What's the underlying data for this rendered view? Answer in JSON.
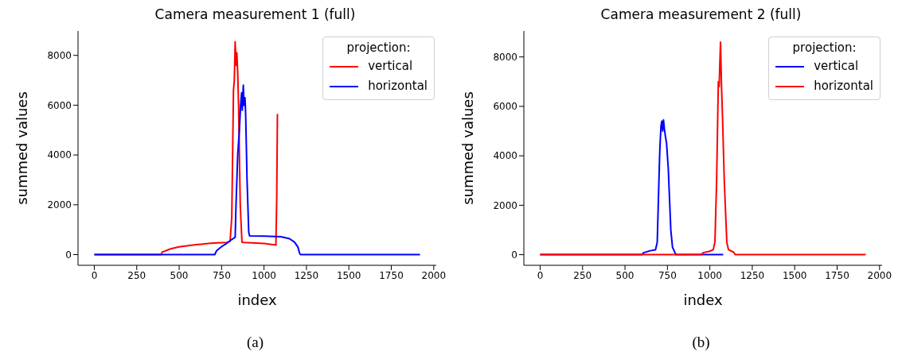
{
  "chart_data": [
    {
      "type": "line",
      "title": "Camera measurement 1 (full)",
      "xlabel": "index",
      "ylabel": "summed values",
      "legend_title": "projection:",
      "legend": "top right",
      "grid": false,
      "annotations": [
        "(a)"
      ],
      "xlim": [
        -96,
        2015
      ],
      "ylim": [
        -430,
        8980
      ],
      "xticks": [
        0,
        250,
        500,
        750,
        1000,
        1250,
        1500,
        1750,
        2000
      ],
      "yticks": [
        0,
        2000,
        4000,
        6000,
        8000
      ],
      "series": [
        {
          "name": "vertical",
          "color": "#ff0000",
          "x": [
            0,
            395,
            400,
            450,
            500,
            600,
            700,
            780,
            800,
            810,
            815,
            820,
            825,
            830,
            835,
            840,
            845,
            850,
            860,
            870,
            880,
            1000,
            1070,
            1075,
            1079
          ],
          "values": [
            0,
            0,
            100,
            230,
            310,
            400,
            460,
            490,
            530,
            1500,
            4000,
            6600,
            7000,
            8550,
            7600,
            8100,
            7300,
            6000,
            2000,
            500,
            490,
            450,
            380,
            2300,
            5650
          ]
        },
        {
          "name": "horizontal",
          "color": "#0000ff",
          "x": [
            0,
            710,
            720,
            750,
            780,
            800,
            820,
            830,
            835,
            845,
            855,
            862,
            868,
            872,
            878,
            882,
            888,
            892,
            900,
            910,
            915,
            1000,
            1100,
            1150,
            1180,
            1200,
            1210,
            1215,
            1919
          ],
          "values": [
            0,
            0,
            150,
            320,
            450,
            560,
            650,
            700,
            2000,
            4000,
            5000,
            6000,
            6500,
            5800,
            6800,
            6000,
            6300,
            5600,
            3000,
            900,
            750,
            740,
            720,
            640,
            500,
            300,
            50,
            0,
            0
          ]
        }
      ]
    },
    {
      "type": "line",
      "title": "Camera measurement 2 (full)",
      "xlabel": "index",
      "ylabel": "summed values",
      "legend_title": "projection:",
      "legend": "top right",
      "grid": false,
      "annotations": [
        "(b)"
      ],
      "xlim": [
        -96,
        2015
      ],
      "ylim": [
        -430,
        9050
      ],
      "xticks": [
        0,
        250,
        500,
        750,
        1000,
        1250,
        1500,
        1750,
        2000
      ],
      "yticks": [
        0,
        2000,
        4000,
        6000,
        8000
      ],
      "series": [
        {
          "name": "vertical",
          "color": "#0000ff",
          "x": [
            0,
            600,
            610,
            650,
            680,
            690,
            700,
            705,
            712,
            717,
            722,
            727,
            732,
            738,
            745,
            755,
            770,
            780,
            800,
            1079
          ],
          "values": [
            0,
            0,
            80,
            160,
            200,
            500,
            3000,
            4200,
            5200,
            5400,
            5000,
            5450,
            5100,
            4800,
            4500,
            3500,
            1000,
            300,
            0,
            0
          ]
        },
        {
          "name": "horizontal",
          "color": "#ff0000",
          "x": [
            0,
            950,
            960,
            1000,
            1020,
            1030,
            1040,
            1050,
            1055,
            1060,
            1063,
            1068,
            1075,
            1085,
            1100,
            1110,
            1140,
            1150,
            1919
          ],
          "values": [
            0,
            0,
            80,
            140,
            200,
            500,
            3000,
            7000,
            6800,
            8000,
            8600,
            7000,
            5500,
            3000,
            500,
            200,
            100,
            0,
            0
          ]
        }
      ]
    }
  ]
}
